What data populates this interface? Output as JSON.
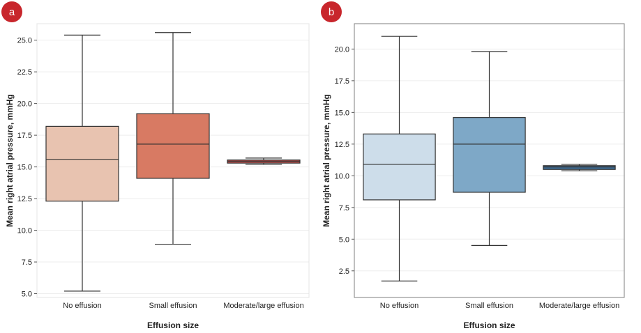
{
  "chart_data": [
    {
      "type": "box",
      "panel_label": "a",
      "xlabel": "Effusion size",
      "ylabel": "Mean right atrial pressure, mmHg",
      "ylim": [
        4.7,
        26.3
      ],
      "yticks": [
        "5.0",
        "7.5",
        "10.0",
        "12.5",
        "15.0",
        "17.5",
        "20.0",
        "22.5",
        "25.0"
      ],
      "grid": true,
      "frame": "light",
      "categories": [
        "No effusion",
        "Small effusion",
        "Moderate/large effusion"
      ],
      "boxes": [
        {
          "min": 5.2,
          "q1": 12.3,
          "median": 15.6,
          "q3": 18.2,
          "max": 25.4,
          "color": "#e8c3b0"
        },
        {
          "min": 8.9,
          "q1": 14.1,
          "median": 16.8,
          "q3": 19.2,
          "max": 25.6,
          "color": "#d87a63"
        },
        {
          "min": 15.2,
          "q1": 15.3,
          "median": 15.45,
          "q3": 15.55,
          "max": 15.7,
          "color": "#c0504d"
        }
      ]
    },
    {
      "type": "box",
      "panel_label": "b",
      "xlabel": "Effusion size",
      "ylabel": "Mean right atrial pressure, mmHg",
      "ylim": [
        0.4,
        22.0
      ],
      "yticks": [
        "2.5",
        "5.0",
        "7.5",
        "10.0",
        "12.5",
        "15.0",
        "17.5",
        "20.0"
      ],
      "grid": true,
      "frame": "dark",
      "categories": [
        "No effusion",
        "Small effusion",
        "Moderate/large effusion"
      ],
      "boxes": [
        {
          "min": 1.7,
          "q1": 8.1,
          "median": 10.9,
          "q3": 13.3,
          "max": 21.0,
          "color": "#cdddea"
        },
        {
          "min": 4.5,
          "q1": 8.7,
          "median": 12.5,
          "q3": 14.6,
          "max": 19.8,
          "color": "#7ea8c7"
        },
        {
          "min": 10.4,
          "q1": 10.5,
          "median": 10.7,
          "q3": 10.8,
          "max": 10.9,
          "color": "#3d6a91"
        }
      ]
    }
  ]
}
